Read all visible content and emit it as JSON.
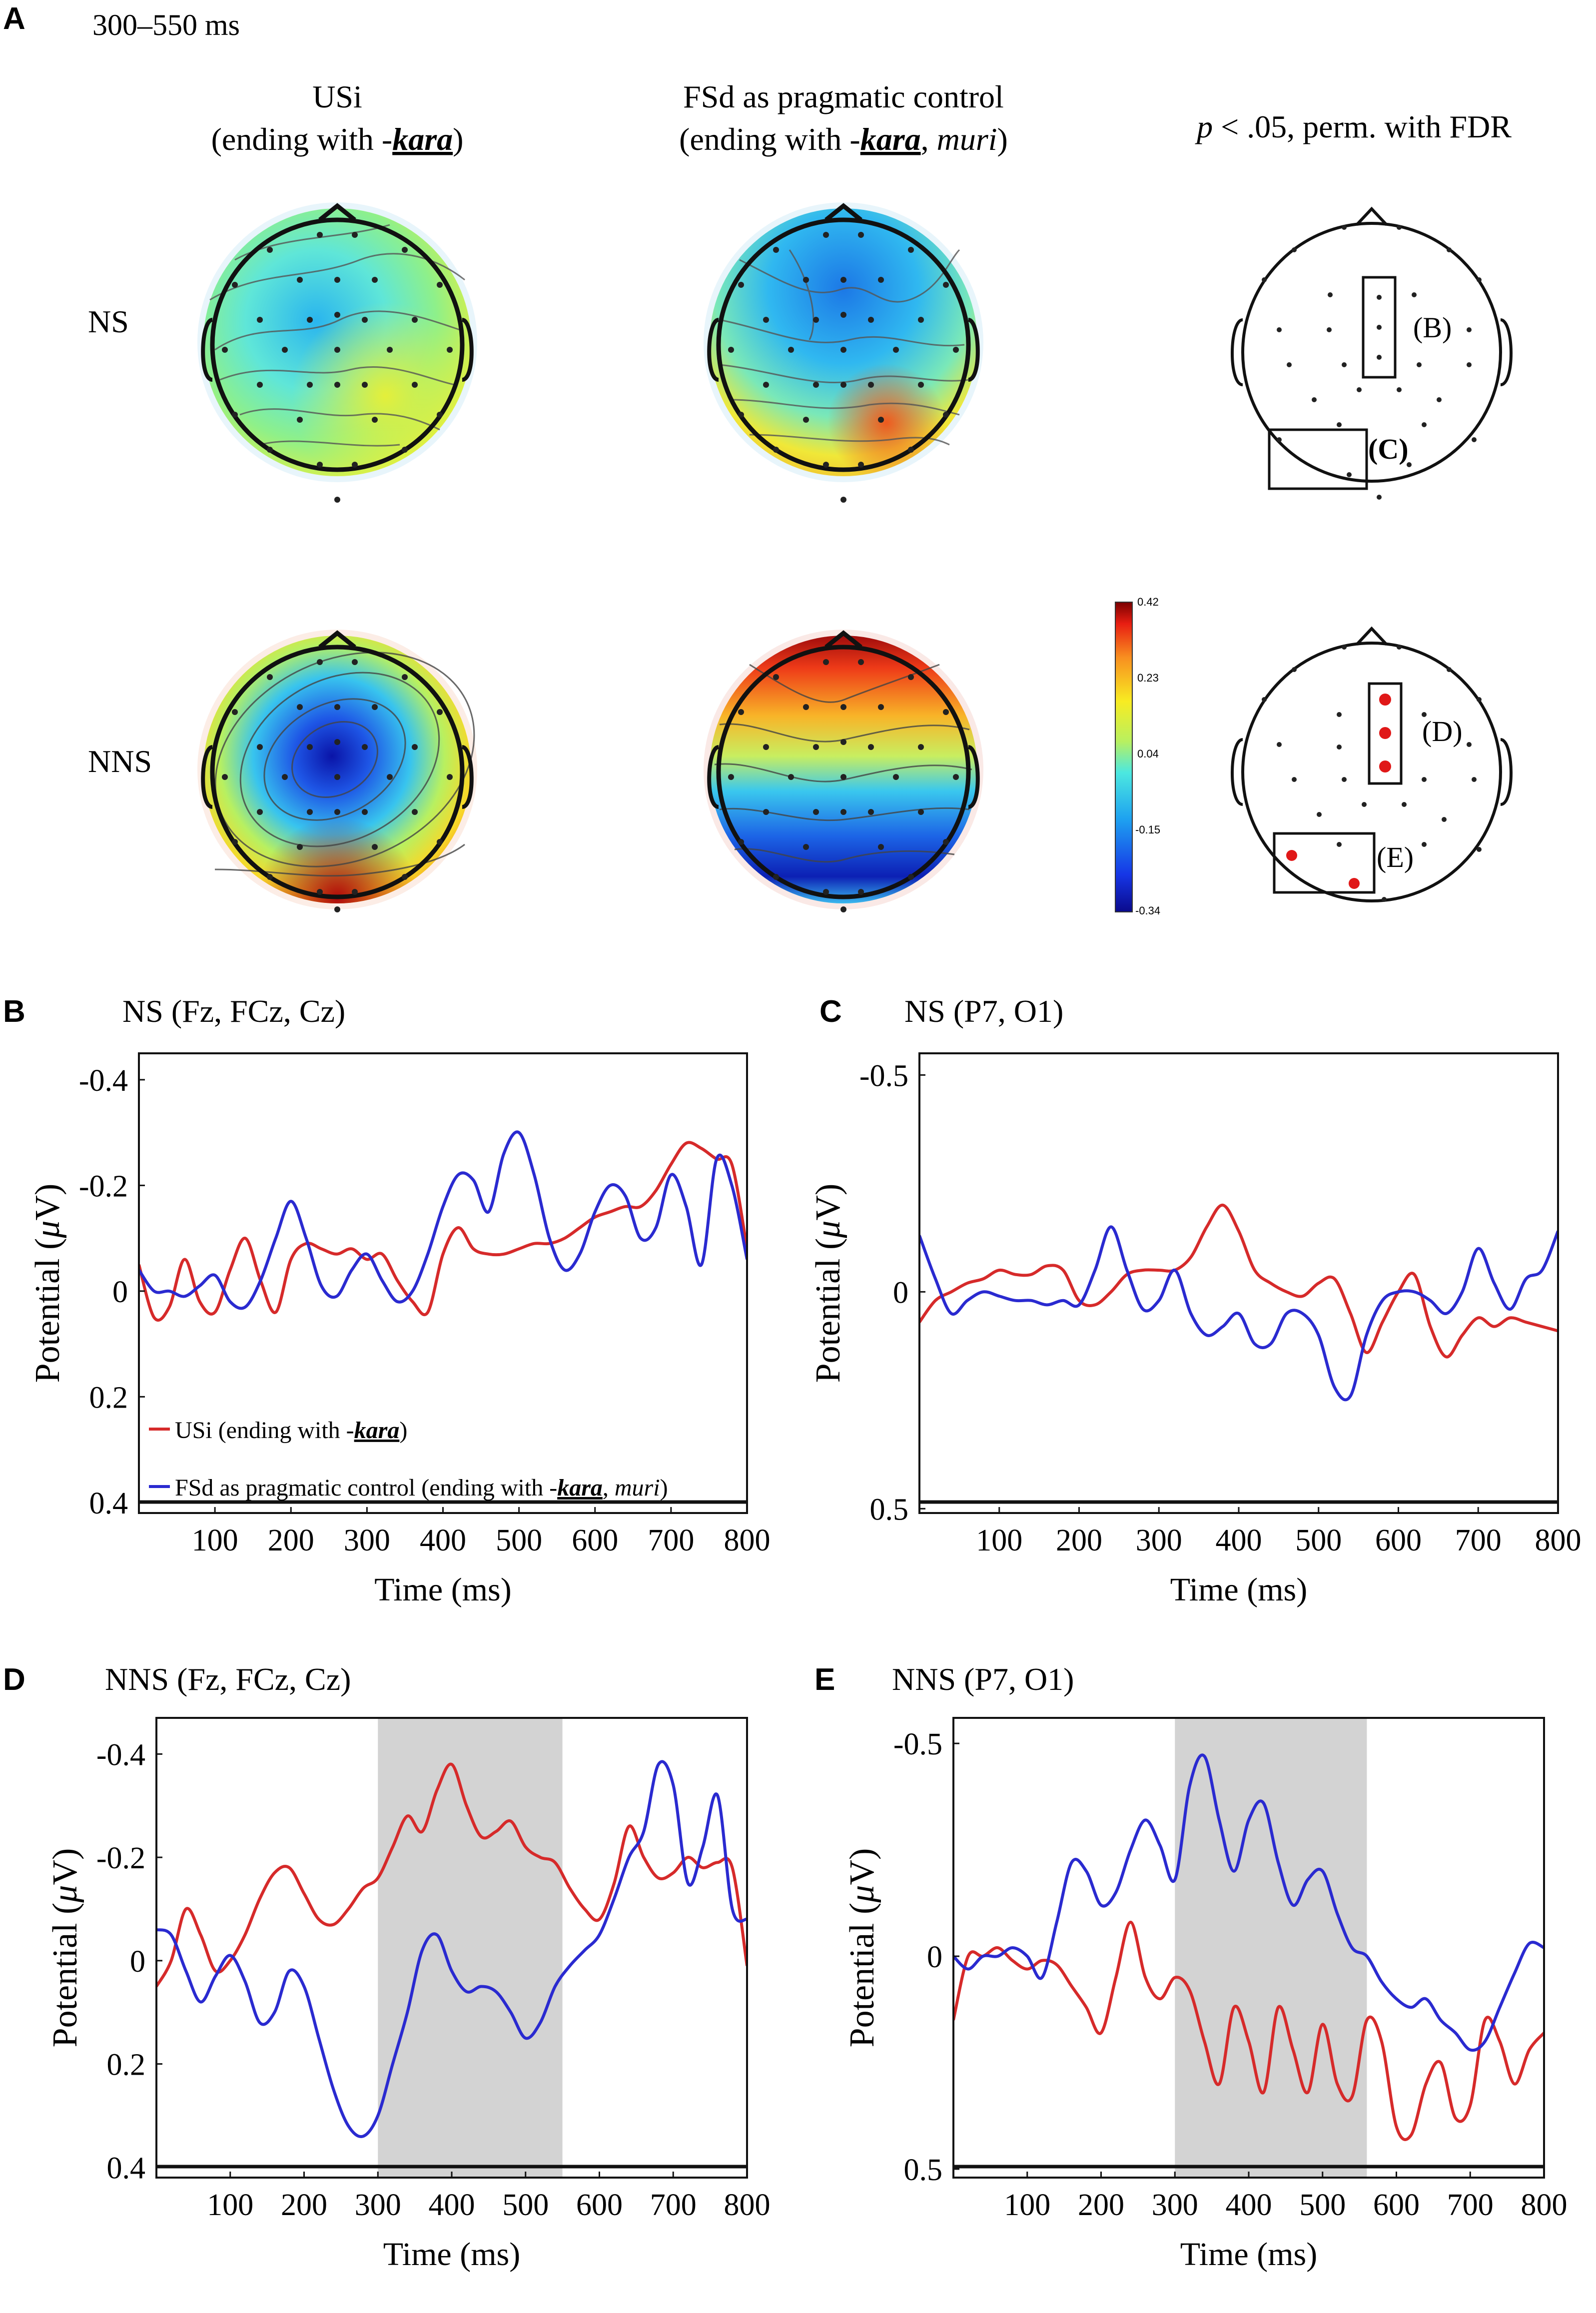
{
  "panel_letters": {
    "a": "A",
    "b": "B",
    "c": "C",
    "d": "D",
    "e": "E"
  },
  "panel_a": {
    "time_window": "300–550 ms",
    "col1_title": "USi",
    "col1_sub_pre": "(ending with -",
    "col1_sub_em": "kara",
    "col1_sub_post": ")",
    "col2_title": "FSd as pragmatic control",
    "col2_sub_pre": "(ending with -",
    "col2_sub_em": "kara",
    "col2_sub_mid": ", ",
    "col2_sub_it": "muri",
    "col2_sub_post": ")",
    "col3_p": "p",
    "col3_rest": " < .05, perm. with FDR",
    "row1_label": "NS",
    "row2_label": "NNS",
    "colorbar_ticks": [
      "0.42",
      "0.23",
      "0.04",
      "-0.15",
      "-0.34"
    ],
    "region_labels_ns": [
      "(B)",
      "(C)"
    ],
    "region_labels_nns": [
      "(D)",
      "(E)"
    ]
  },
  "chart_data": [
    {
      "type": "line",
      "panel": "B",
      "title": "NS (Fz, FCz, Cz)",
      "xlabel": "Time (ms)",
      "ylabel": "Potential (μV)",
      "ylabel_pre": "Potential (",
      "ylabel_mu": "μ",
      "ylabel_post": "V)",
      "xlim": [
        0,
        800
      ],
      "ylim": [
        -0.45,
        0.42
      ],
      "y_inverted": true,
      "xticks": [
        100,
        200,
        300,
        400,
        500,
        600,
        700,
        800
      ],
      "yticks": [
        -0.4,
        -0.2,
        0,
        0.2,
        0.4
      ],
      "ytick_labels": [
        "-0.4",
        "-0.2",
        "0",
        "0.2",
        "0.4"
      ],
      "legend": [
        {
          "name": "USi (ending with -kara)",
          "pre": "USi (ending with -",
          "em": "kara",
          "mid": "",
          "it": "",
          "post": ")",
          "color": "#d62a2a"
        },
        {
          "name": "FSd as pragmatic control (ending with -kara, muri)",
          "pre": "FSd as pragmatic control (ending with -",
          "em": "kara",
          "mid": ", ",
          "it": "muri",
          "post": ")",
          "color": "#2a2ad0"
        }
      ],
      "highlight": null,
      "series": [
        {
          "name": "USi",
          "color": "#d62a2a",
          "x": [
            0,
            20,
            40,
            60,
            80,
            100,
            120,
            140,
            160,
            180,
            200,
            220,
            240,
            260,
            280,
            300,
            320,
            340,
            360,
            380,
            400,
            420,
            440,
            460,
            480,
            500,
            520,
            540,
            560,
            580,
            600,
            620,
            640,
            660,
            680,
            700,
            720,
            740,
            760,
            780,
            800
          ],
          "y": [
            -0.05,
            0.05,
            0.03,
            -0.06,
            0.02,
            0.04,
            -0.04,
            -0.1,
            -0.02,
            0.04,
            -0.06,
            -0.09,
            -0.08,
            -0.07,
            -0.08,
            -0.06,
            -0.07,
            -0.02,
            0.02,
            0.04,
            -0.07,
            -0.12,
            -0.08,
            -0.07,
            -0.07,
            -0.08,
            -0.09,
            -0.09,
            -0.1,
            -0.12,
            -0.14,
            -0.15,
            -0.16,
            -0.16,
            -0.19,
            -0.24,
            -0.28,
            -0.27,
            -0.25,
            -0.24,
            -0.08
          ]
        },
        {
          "name": "FSd",
          "color": "#2a2ad0",
          "x": [
            0,
            20,
            40,
            60,
            80,
            100,
            120,
            140,
            160,
            180,
            200,
            220,
            240,
            260,
            280,
            300,
            320,
            340,
            360,
            380,
            400,
            420,
            440,
            460,
            480,
            500,
            520,
            540,
            560,
            580,
            600,
            620,
            640,
            660,
            680,
            700,
            720,
            740,
            760,
            780,
            800
          ],
          "y": [
            -0.04,
            0,
            0,
            0.01,
            -0.01,
            -0.03,
            0.02,
            0.03,
            -0.02,
            -0.1,
            -0.17,
            -0.1,
            -0.01,
            0.01,
            -0.04,
            -0.07,
            -0.02,
            0.02,
            0,
            -0.07,
            -0.16,
            -0.22,
            -0.21,
            -0.15,
            -0.26,
            -0.3,
            -0.22,
            -0.1,
            -0.04,
            -0.07,
            -0.15,
            -0.2,
            -0.18,
            -0.1,
            -0.12,
            -0.22,
            -0.16,
            -0.05,
            -0.25,
            -0.2,
            -0.06
          ]
        }
      ]
    },
    {
      "type": "line",
      "panel": "C",
      "title": "NS (P7, O1)",
      "xlabel": "Time (ms)",
      "ylabel": "Potential (μV)",
      "ylabel_pre": "Potential (",
      "ylabel_mu": "μ",
      "ylabel_post": "V)",
      "xlim": [
        0,
        800
      ],
      "ylim": [
        -0.55,
        0.51
      ],
      "y_inverted": true,
      "xticks": [
        100,
        200,
        300,
        400,
        500,
        600,
        700,
        800
      ],
      "yticks": [
        -0.5,
        0,
        0.5
      ],
      "ytick_labels": [
        "-0.5",
        "0",
        "0.5"
      ],
      "legend": null,
      "highlight": null,
      "series": [
        {
          "name": "USi",
          "color": "#d62a2a",
          "x": [
            0,
            20,
            40,
            60,
            80,
            100,
            120,
            140,
            160,
            180,
            200,
            220,
            240,
            260,
            280,
            300,
            320,
            340,
            360,
            380,
            400,
            420,
            440,
            460,
            480,
            500,
            520,
            540,
            560,
            580,
            600,
            620,
            640,
            660,
            680,
            700,
            720,
            740,
            760,
            780,
            800
          ],
          "y": [
            0.07,
            0.02,
            0,
            -0.02,
            -0.03,
            -0.05,
            -0.04,
            -0.04,
            -0.06,
            -0.05,
            0.02,
            0.03,
            0,
            -0.04,
            -0.05,
            -0.05,
            -0.05,
            -0.08,
            -0.15,
            -0.2,
            -0.14,
            -0.05,
            -0.02,
            0,
            0.01,
            -0.02,
            -0.03,
            0.05,
            0.14,
            0.07,
            0,
            -0.04,
            0.08,
            0.15,
            0.1,
            0.06,
            0.08,
            0.06,
            0.07,
            0.08,
            0.09
          ]
        },
        {
          "name": "FSd",
          "color": "#2a2ad0",
          "x": [
            0,
            20,
            40,
            60,
            80,
            100,
            120,
            140,
            160,
            180,
            200,
            220,
            240,
            260,
            280,
            300,
            320,
            340,
            360,
            380,
            400,
            420,
            440,
            460,
            480,
            500,
            520,
            540,
            560,
            580,
            600,
            620,
            640,
            660,
            680,
            700,
            720,
            740,
            760,
            780,
            800
          ],
          "y": [
            -0.13,
            -0.03,
            0.05,
            0.02,
            0,
            0.01,
            0.02,
            0.02,
            0.03,
            0.02,
            0.03,
            -0.05,
            -0.15,
            -0.05,
            0.04,
            0.02,
            -0.05,
            0.05,
            0.1,
            0.08,
            0.05,
            0.12,
            0.12,
            0.05,
            0.05,
            0.1,
            0.22,
            0.24,
            0.1,
            0.02,
            0,
            0,
            0.02,
            0.05,
            0,
            -0.1,
            -0.02,
            0.04,
            -0.03,
            -0.05,
            -0.14
          ]
        }
      ]
    },
    {
      "type": "line",
      "panel": "D",
      "title": "NNS (Fz, FCz, Cz)",
      "xlabel": "Time (ms)",
      "ylabel": "Potential (μV)",
      "ylabel_pre": "Potential (",
      "ylabel_mu": "μ",
      "ylabel_post": "V)",
      "xlim": [
        0,
        800
      ],
      "ylim": [
        -0.47,
        0.42
      ],
      "y_inverted": true,
      "xticks": [
        100,
        200,
        300,
        400,
        500,
        600,
        700,
        800
      ],
      "yticks": [
        -0.4,
        -0.2,
        0,
        0.2,
        0.4
      ],
      "ytick_labels": [
        "-0.4",
        "-0.2",
        "0",
        "0.2",
        "0.4"
      ],
      "legend": null,
      "highlight": [
        300,
        550
      ],
      "series": [
        {
          "name": "USi",
          "color": "#d62a2a",
          "x": [
            0,
            20,
            40,
            60,
            80,
            100,
            120,
            140,
            160,
            180,
            200,
            220,
            240,
            260,
            280,
            300,
            320,
            340,
            360,
            380,
            400,
            420,
            440,
            460,
            480,
            500,
            520,
            540,
            560,
            580,
            600,
            620,
            640,
            660,
            680,
            700,
            720,
            740,
            760,
            780,
            800
          ],
          "y": [
            0.05,
            0,
            -0.1,
            -0.05,
            0.02,
            0,
            -0.05,
            -0.12,
            -0.17,
            -0.18,
            -0.13,
            -0.08,
            -0.07,
            -0.1,
            -0.14,
            -0.16,
            -0.22,
            -0.28,
            -0.25,
            -0.33,
            -0.38,
            -0.3,
            -0.24,
            -0.25,
            -0.27,
            -0.22,
            -0.2,
            -0.19,
            -0.14,
            -0.1,
            -0.08,
            -0.15,
            -0.26,
            -0.2,
            -0.16,
            -0.17,
            -0.2,
            -0.18,
            -0.19,
            -0.18,
            0.01
          ]
        },
        {
          "name": "FSd",
          "color": "#2a2ad0",
          "x": [
            0,
            20,
            40,
            60,
            80,
            100,
            120,
            140,
            160,
            180,
            200,
            220,
            240,
            260,
            280,
            300,
            320,
            340,
            360,
            380,
            400,
            420,
            440,
            460,
            480,
            500,
            520,
            540,
            560,
            580,
            600,
            620,
            640,
            660,
            680,
            700,
            720,
            740,
            760,
            780,
            800
          ],
          "y": [
            -0.06,
            -0.05,
            0.02,
            0.08,
            0.03,
            -0.01,
            0.04,
            0.12,
            0.1,
            0.02,
            0.05,
            0.15,
            0.25,
            0.32,
            0.34,
            0.3,
            0.2,
            0.1,
            -0.02,
            -0.05,
            0.02,
            0.06,
            0.05,
            0.06,
            0.1,
            0.15,
            0.12,
            0.05,
            0.01,
            -0.02,
            -0.05,
            -0.12,
            -0.2,
            -0.25,
            -0.38,
            -0.34,
            -0.15,
            -0.22,
            -0.32,
            -0.1,
            -0.08
          ]
        }
      ]
    },
    {
      "type": "line",
      "panel": "E",
      "title": "NNS (P7, O1)",
      "xlabel": "Time (ms)",
      "ylabel": "Potential (μV)",
      "ylabel_pre": "Potential (",
      "ylabel_mu": "μ",
      "ylabel_post": "V)",
      "xlim": [
        0,
        800
      ],
      "ylim": [
        -0.56,
        0.52
      ],
      "y_inverted": true,
      "xticks": [
        100,
        200,
        300,
        400,
        500,
        600,
        700,
        800
      ],
      "yticks": [
        -0.5,
        0,
        0.5
      ],
      "ytick_labels": [
        "-0.5",
        "0",
        "0.5"
      ],
      "legend": null,
      "highlight": [
        300,
        560
      ],
      "series": [
        {
          "name": "USi",
          "color": "#d62a2a",
          "x": [
            0,
            20,
            40,
            60,
            80,
            100,
            120,
            140,
            160,
            180,
            200,
            220,
            240,
            260,
            280,
            300,
            320,
            340,
            360,
            380,
            400,
            420,
            440,
            460,
            480,
            500,
            520,
            540,
            560,
            580,
            600,
            620,
            640,
            660,
            680,
            700,
            720,
            740,
            760,
            780,
            800
          ],
          "y": [
            0.15,
            0,
            0,
            -0.02,
            0.01,
            0.03,
            0.01,
            0.02,
            0.07,
            0.12,
            0.18,
            0.05,
            -0.08,
            0.05,
            0.1,
            0.05,
            0.08,
            0.2,
            0.3,
            0.12,
            0.2,
            0.32,
            0.12,
            0.22,
            0.32,
            0.16,
            0.3,
            0.33,
            0.15,
            0.2,
            0.4,
            0.42,
            0.3,
            0.25,
            0.38,
            0.35,
            0.15,
            0.2,
            0.3,
            0.22,
            0.18
          ]
        },
        {
          "name": "FSd",
          "color": "#2a2ad0",
          "x": [
            0,
            20,
            40,
            60,
            80,
            100,
            120,
            140,
            160,
            180,
            200,
            220,
            240,
            260,
            280,
            300,
            320,
            340,
            360,
            380,
            400,
            420,
            440,
            460,
            480,
            500,
            520,
            540,
            560,
            580,
            600,
            620,
            640,
            660,
            680,
            700,
            720,
            740,
            760,
            780,
            800
          ],
          "y": [
            0,
            0.03,
            0,
            0,
            -0.02,
            0,
            0.05,
            -0.08,
            -0.22,
            -0.2,
            -0.12,
            -0.15,
            -0.25,
            -0.32,
            -0.26,
            -0.18,
            -0.4,
            -0.47,
            -0.32,
            -0.2,
            -0.32,
            -0.36,
            -0.22,
            -0.12,
            -0.18,
            -0.2,
            -0.1,
            -0.02,
            0,
            0.06,
            0.1,
            0.12,
            0.1,
            0.15,
            0.18,
            0.22,
            0.2,
            0.12,
            0.04,
            -0.03,
            -0.02
          ]
        }
      ]
    }
  ]
}
